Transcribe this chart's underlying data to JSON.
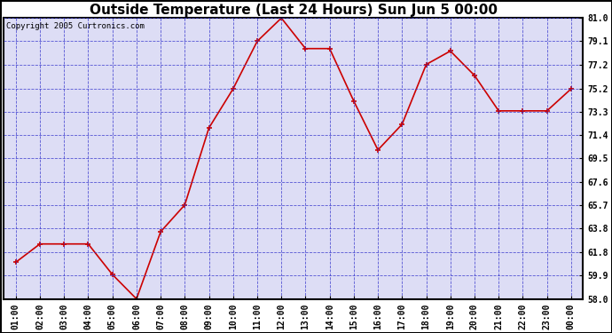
{
  "title": "Outside Temperature (Last 24 Hours) Sun Jun 5 00:00",
  "copyright": "Copyright 2005 Curtronics.com",
  "x_labels": [
    "01:00",
    "02:00",
    "03:00",
    "04:00",
    "05:00",
    "06:00",
    "07:00",
    "08:00",
    "09:00",
    "10:00",
    "11:00",
    "12:00",
    "13:00",
    "14:00",
    "15:00",
    "16:00",
    "17:00",
    "18:00",
    "19:00",
    "20:00",
    "21:00",
    "22:00",
    "23:00",
    "00:00"
  ],
  "x_values": [
    1,
    2,
    3,
    4,
    5,
    6,
    7,
    8,
    9,
    10,
    11,
    12,
    13,
    14,
    15,
    16,
    17,
    18,
    19,
    20,
    21,
    22,
    23,
    24
  ],
  "y_values": [
    61.0,
    62.5,
    62.5,
    62.5,
    60.0,
    58.0,
    63.5,
    65.7,
    72.0,
    75.2,
    79.1,
    81.0,
    78.5,
    78.5,
    74.2,
    70.2,
    72.3,
    77.2,
    78.3,
    76.3,
    73.4,
    73.4,
    73.4,
    75.2
  ],
  "line_color": "#cc0000",
  "marker_color": "#cc0000",
  "fig_bg_color": "#ffffff",
  "plot_bg_color": "#ddddf5",
  "grid_color": "#3333cc",
  "title_color": "#000000",
  "border_color": "#000000",
  "y_ticks": [
    58.0,
    59.9,
    61.8,
    63.8,
    65.7,
    67.6,
    69.5,
    71.4,
    73.3,
    75.2,
    77.2,
    79.1,
    81.0
  ],
  "y_min": 58.0,
  "y_max": 81.0,
  "title_fontsize": 11,
  "axis_fontsize": 7,
  "copyright_fontsize": 6.5
}
